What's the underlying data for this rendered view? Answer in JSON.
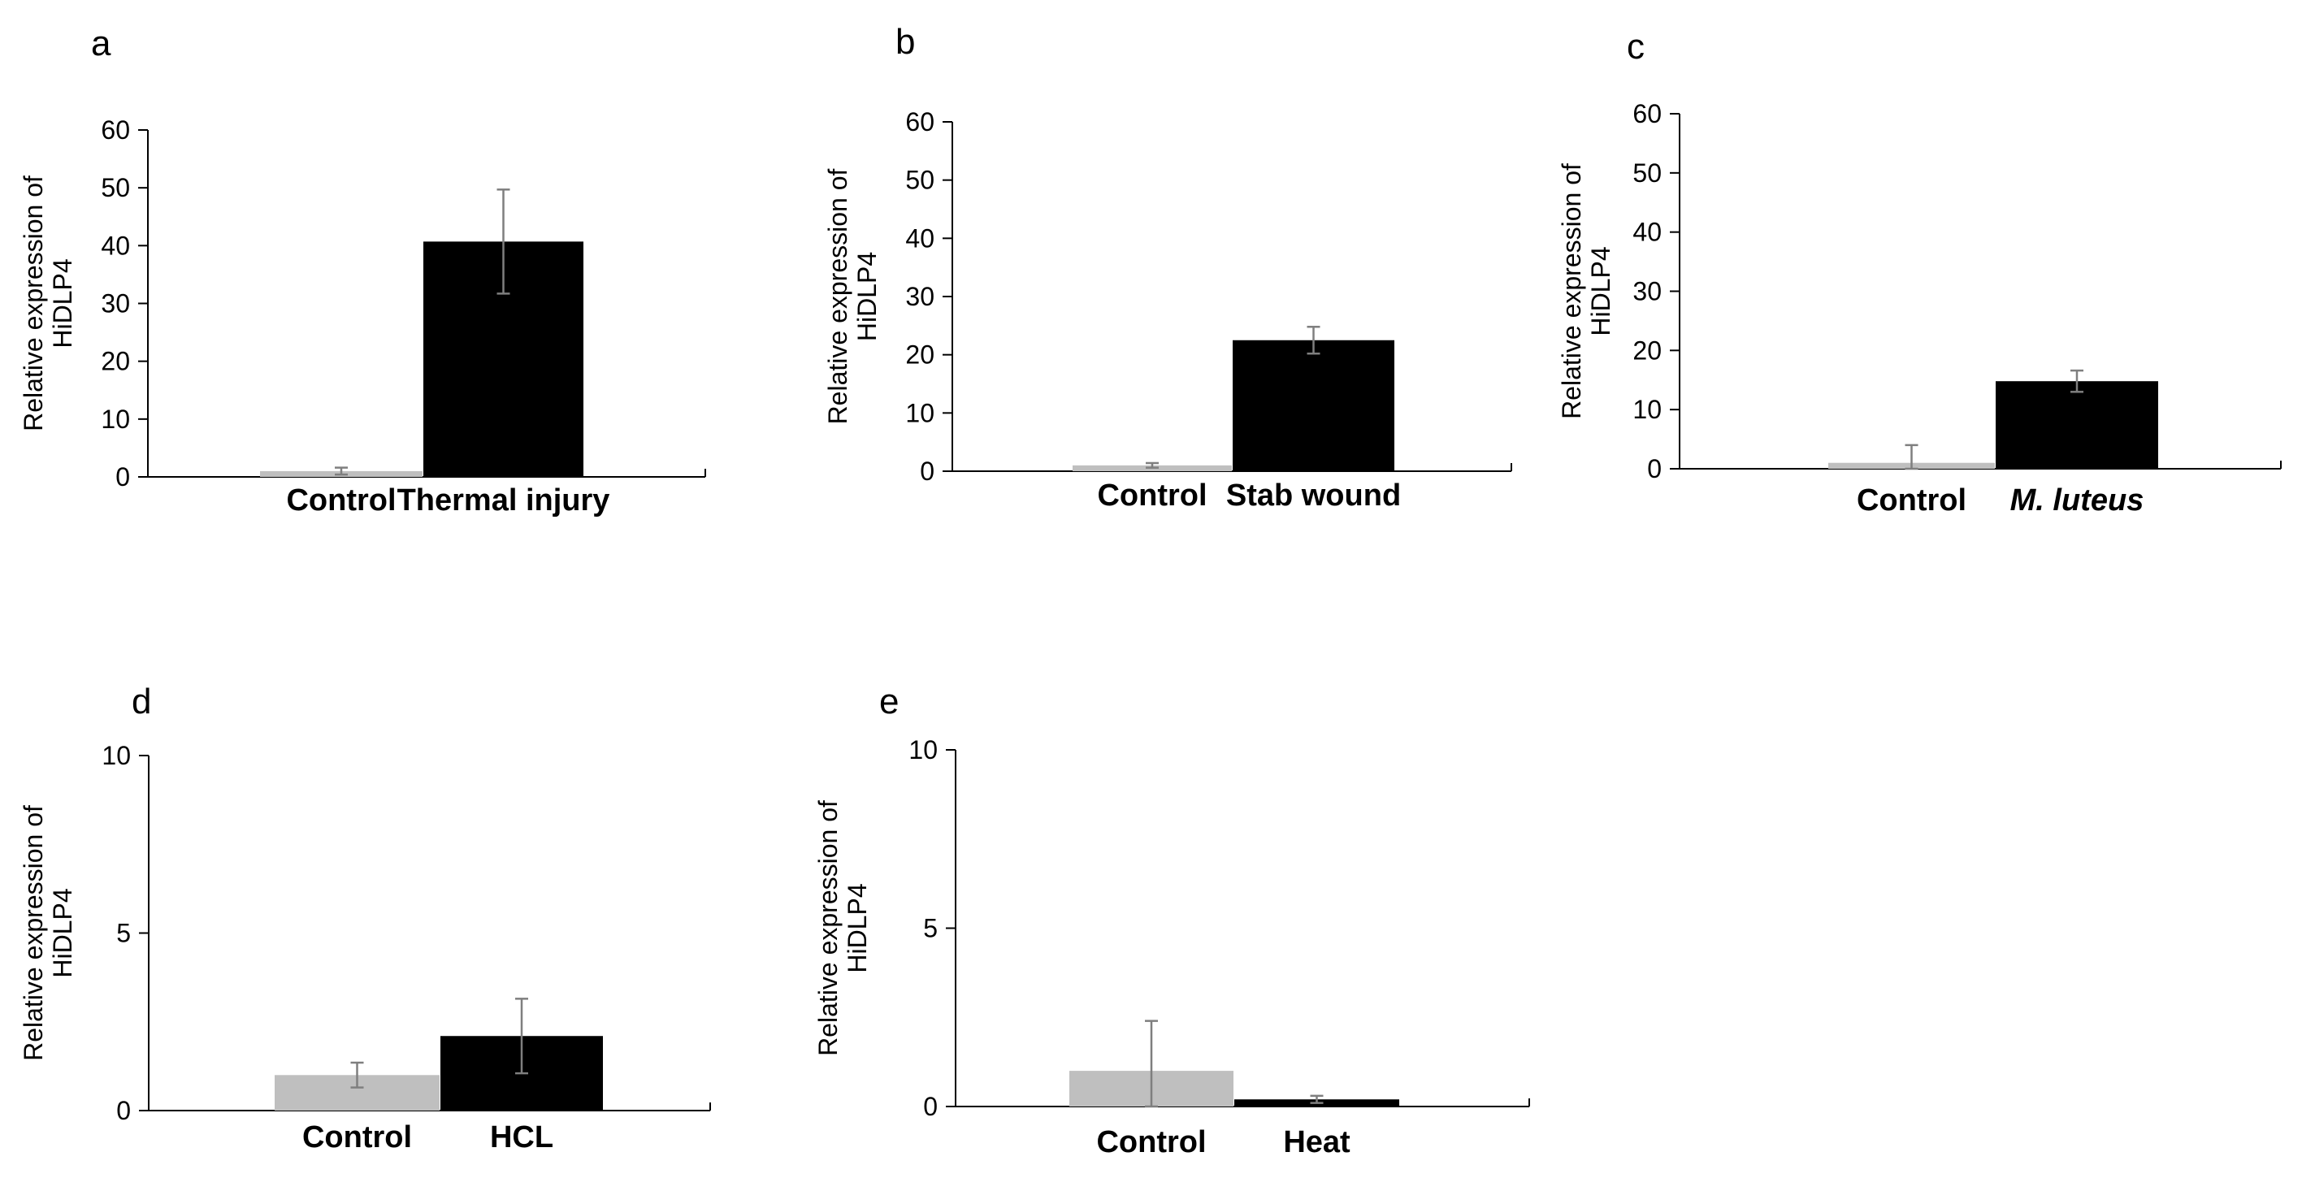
{
  "chart_data": [
    {
      "panel": "a",
      "type": "bar",
      "categories": [
        "Control",
        "Thermal injury"
      ],
      "values": [
        1.0,
        40.7
      ],
      "errors": [
        0.6,
        9.0
      ],
      "colors": [
        "#bfbfbf",
        "#000000"
      ],
      "ylabel_lines": [
        "Relative expression of",
        "HiDLP4"
      ],
      "ylim": [
        0,
        60
      ],
      "yticks": [
        0,
        10,
        20,
        30,
        40,
        50,
        60
      ],
      "italic_categories": []
    },
    {
      "panel": "b",
      "type": "bar",
      "categories": [
        "Control",
        "Stab wound"
      ],
      "values": [
        1.0,
        22.5
      ],
      "errors": [
        0.4,
        2.3
      ],
      "colors": [
        "#bfbfbf",
        "#000000"
      ],
      "ylabel_lines": [
        "Relative expression of",
        "HiDLP4"
      ],
      "ylim": [
        0,
        60
      ],
      "yticks": [
        0,
        10,
        20,
        30,
        40,
        50,
        60
      ],
      "italic_categories": []
    },
    {
      "panel": "c",
      "type": "bar",
      "categories": [
        "Control",
        "M. luteus"
      ],
      "values": [
        1.0,
        14.8
      ],
      "errors": [
        3.0,
        1.8
      ],
      "colors": [
        "#bfbfbf",
        "#000000"
      ],
      "ylabel_lines": [
        "Relative expression of",
        "HiDLP4"
      ],
      "ylim": [
        0,
        60
      ],
      "yticks": [
        0,
        10,
        20,
        30,
        40,
        50,
        60
      ],
      "italic_categories": [
        1
      ]
    },
    {
      "panel": "d",
      "type": "bar",
      "categories": [
        "Control",
        "HCL"
      ],
      "values": [
        1.0,
        2.1
      ],
      "errors": [
        0.35,
        1.05
      ],
      "colors": [
        "#bfbfbf",
        "#000000"
      ],
      "ylabel_lines": [
        "Relative expression of",
        "HiDLP4"
      ],
      "ylim": [
        0,
        10
      ],
      "yticks": [
        0,
        5,
        10
      ],
      "italic_categories": []
    },
    {
      "panel": "e",
      "type": "bar",
      "categories": [
        "Control",
        "Heat"
      ],
      "values": [
        1.0,
        0.2
      ],
      "errors": [
        1.4,
        0.1
      ],
      "colors": [
        "#bfbfbf",
        "#000000"
      ],
      "ylabel_lines": [
        "Relative expression of",
        "HiDLP4"
      ],
      "ylim": [
        0,
        10
      ],
      "yticks": [
        0,
        5,
        10
      ],
      "italic_categories": []
    }
  ]
}
